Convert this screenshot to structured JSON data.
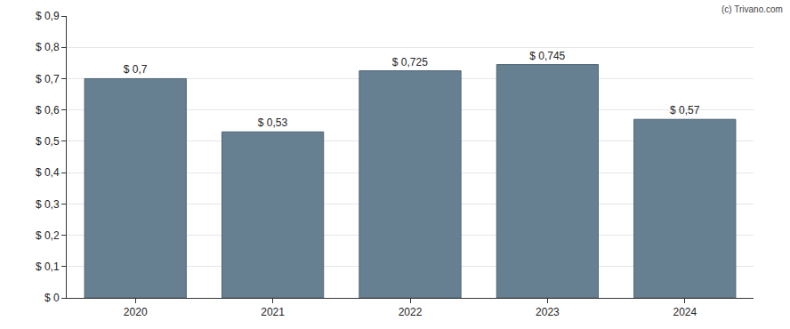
{
  "chart_data": {
    "type": "bar",
    "categories": [
      "2020",
      "2021",
      "2022",
      "2023",
      "2024"
    ],
    "values": [
      0.7,
      0.53,
      0.725,
      0.745,
      0.57
    ],
    "value_labels": [
      "$ 0,7",
      "$ 0,53",
      "$ 0,725",
      "$ 0,745",
      "$ 0,57"
    ],
    "data_labels": true,
    "color": "#667f91",
    "ylim": [
      0,
      0.9
    ],
    "yticks": [
      {
        "value": 0,
        "label": "$ 0"
      },
      {
        "value": 0.1,
        "label": "$ 0,1"
      },
      {
        "value": 0.2,
        "label": "$ 0,2"
      },
      {
        "value": 0.3,
        "label": "$ 0,3"
      },
      {
        "value": 0.4,
        "label": "$ 0,4"
      },
      {
        "value": 0.5,
        "label": "$ 0,5"
      },
      {
        "value": 0.6,
        "label": "$ 0,6"
      },
      {
        "value": 0.7,
        "label": "$ 0,7"
      },
      {
        "value": 0.8,
        "label": "$ 0,8"
      },
      {
        "value": 0.9,
        "label": "$ 0,9"
      }
    ],
    "grid": true,
    "annotations": [
      "(c) Trivano.com"
    ]
  }
}
